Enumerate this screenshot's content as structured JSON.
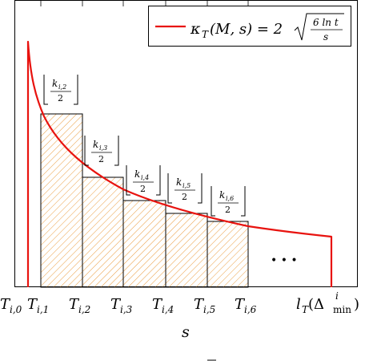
{
  "legend": {
    "lhs": "κ",
    "lhs_sub": "T",
    "lhs_args": "(M, s) = 2",
    "frac_num": "6 ln t",
    "frac_den": "s"
  },
  "boxes": [
    {
      "k": "k",
      "sub": "i,2",
      "den": "2"
    },
    {
      "k": "k",
      "sub": "i,3",
      "den": "2"
    },
    {
      "k": "k",
      "sub": "i,4",
      "den": "2"
    },
    {
      "k": "k",
      "sub": "i,5",
      "den": "2"
    },
    {
      "k": "k",
      "sub": "i,6",
      "den": "2"
    }
  ],
  "x_ticks": [
    {
      "main": "T",
      "sub": "i,0"
    },
    {
      "main": "T",
      "sub": "i,1"
    },
    {
      "main": "T",
      "sub": "i,2"
    },
    {
      "main": "T",
      "sub": "i,3"
    },
    {
      "main": "T",
      "sub": "i,4"
    },
    {
      "main": "T",
      "sub": "i,5"
    },
    {
      "main": "T",
      "sub": "i,6"
    }
  ],
  "end_label": {
    "main": "l",
    "sub": "T",
    "paren_open": "(Δ",
    "sup": "i",
    "subscript": "min",
    "paren_close": ")"
  },
  "ellipsis": "• • •",
  "x_axis_label": "s",
  "colors": {
    "curve": "#e8130f",
    "hatch": "#e8922a",
    "axis": "#000000"
  }
}
